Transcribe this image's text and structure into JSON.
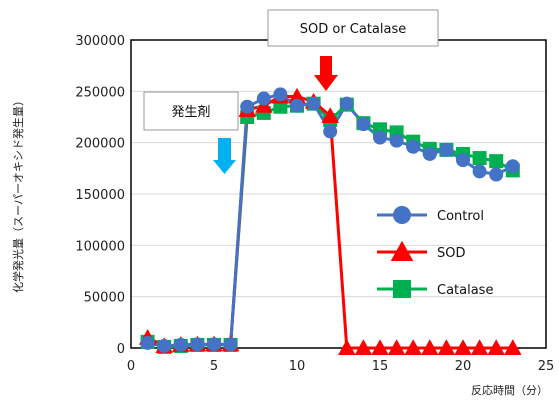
{
  "chart_data": {
    "type": "line",
    "title": "",
    "xlabel": "反応時間（分）",
    "ylabel": "化学発光量（スーパーオキシド発生量）",
    "xlim": [
      0,
      25
    ],
    "ylim": [
      0,
      300000
    ],
    "xticks": [
      0,
      5,
      10,
      15,
      20,
      25
    ],
    "yticks": [
      0,
      50000,
      100000,
      150000,
      200000,
      250000,
      300000
    ],
    "xtick_labels": [
      "0",
      "5",
      "10",
      "15",
      "20",
      "25"
    ],
    "ytick_labels": [
      "0",
      "50000",
      "100000",
      "150000",
      "200000",
      "250000",
      "300000"
    ],
    "grid": "horizontal",
    "legend_position": "right-middle",
    "series": [
      {
        "name": "Control",
        "color": "#4472C4",
        "marker": "circle",
        "x": [
          1,
          2,
          3,
          4,
          5,
          6,
          7,
          8,
          9,
          10,
          11,
          12,
          13,
          14,
          15,
          16,
          17,
          18,
          19,
          20,
          21,
          22,
          23
        ],
        "y": [
          5000,
          2000,
          3000,
          3500,
          3500,
          3500,
          235000,
          243000,
          247000,
          236000,
          238000,
          211000,
          238000,
          218000,
          205000,
          202000,
          196000,
          189000,
          193000,
          183000,
          172000,
          169000,
          177000
        ]
      },
      {
        "name": "SOD",
        "color": "#FF0000",
        "marker": "triangle",
        "x": [
          1,
          2,
          3,
          4,
          5,
          6,
          7,
          8,
          9,
          10,
          11,
          12,
          13,
          14,
          15,
          16,
          17,
          18,
          19,
          20,
          21,
          22,
          23
        ],
        "y": [
          10000,
          2000,
          3000,
          3500,
          3500,
          3500,
          232000,
          236000,
          245000,
          245000,
          240000,
          226000,
          0,
          0,
          0,
          0,
          0,
          0,
          0,
          0,
          0,
          0,
          0
        ]
      },
      {
        "name": "Catalase",
        "color": "#00B050",
        "marker": "square",
        "x": [
          1,
          2,
          3,
          4,
          5,
          6,
          7,
          8,
          9,
          10,
          11,
          12,
          13,
          14,
          15,
          16,
          17,
          18,
          19,
          20,
          21,
          22,
          23
        ],
        "y": [
          6000,
          1000,
          2000,
          3000,
          3000,
          3000,
          225000,
          229000,
          235000,
          236000,
          238000,
          222000,
          237000,
          219000,
          213000,
          210000,
          201000,
          194000,
          193000,
          189000,
          185000,
          182000,
          173000
        ]
      }
    ],
    "annotations": [
      {
        "text": "発生剤",
        "arrow_at_x": 5.6,
        "arrow_color": "#00B0F0"
      },
      {
        "text": "SOD or Catalase",
        "arrow_at_x": 11.8,
        "arrow_color": "#FF0000"
      }
    ]
  }
}
